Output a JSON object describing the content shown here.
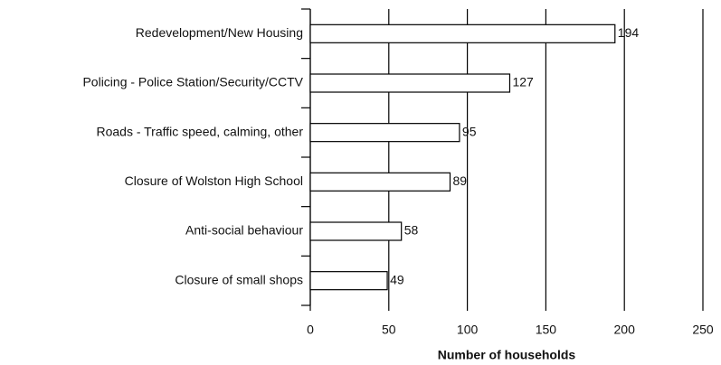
{
  "chart_data": {
    "type": "bar",
    "orientation": "horizontal",
    "categories": [
      "Redevelopment/New Housing",
      "Policing - Police Station/Security/CCTV",
      "Roads - Traffic speed, calming, other",
      "Closure of Wolston High School",
      "Anti-social behaviour",
      "Closure of small shops"
    ],
    "values": [
      194,
      127,
      95,
      89,
      58,
      49
    ],
    "color": "#ffffff",
    "xlabel": "Number of households",
    "xlim": [
      0,
      250
    ],
    "xticks": [
      0,
      50,
      100,
      150,
      200,
      250
    ],
    "grid": true
  }
}
